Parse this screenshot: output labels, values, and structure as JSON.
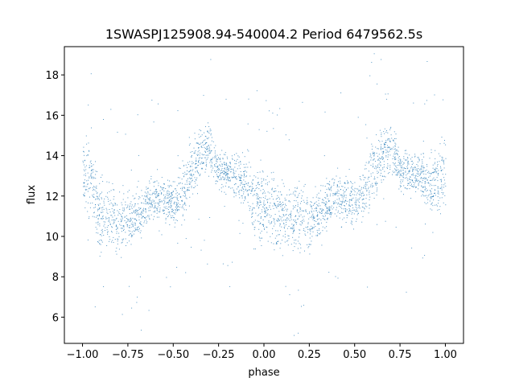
{
  "chart_data": {
    "type": "scatter",
    "title": "1SWASPJ125908.94-540004.2 Period 6479562.5s",
    "xlabel": "phase",
    "ylabel": "flux",
    "xlim": [
      -1.1,
      1.1
    ],
    "ylim": [
      4.7,
      19.4
    ],
    "xticks": [
      -1.0,
      -0.75,
      -0.5,
      -0.25,
      0.0,
      0.25,
      0.5,
      0.75,
      1.0
    ],
    "xtick_labels": [
      "−1.00",
      "−0.75",
      "−0.50",
      "−0.25",
      "0.00",
      "0.25",
      "0.50",
      "0.75",
      "1.00"
    ],
    "yticks": [
      6,
      8,
      10,
      12,
      14,
      16,
      18
    ],
    "ytick_labels": [
      "6",
      "8",
      "10",
      "12",
      "14",
      "16",
      "18"
    ],
    "grid": false,
    "point_color": "#1f77b4",
    "series": [
      {
        "x": [
          -1.0,
          -0.95,
          -0.9,
          -0.85,
          -0.8,
          -0.75,
          -0.7,
          -0.65,
          -0.6,
          -0.55,
          -0.5,
          -0.45,
          -0.4,
          -0.35,
          -0.3,
          -0.25,
          -0.2,
          -0.15,
          -0.1,
          -0.05,
          0.0,
          0.05,
          0.1,
          0.15,
          0.2,
          0.25,
          0.3,
          0.35,
          0.4,
          0.45,
          0.5,
          0.55,
          0.6,
          0.65,
          0.7,
          0.75,
          0.8,
          0.85,
          0.9,
          0.95,
          1.0
        ],
        "y": [
          13.2,
          12.6,
          11.0,
          11.2,
          10.8,
          10.6,
          11.2,
          11.5,
          11.9,
          11.8,
          11.7,
          12.2,
          13.1,
          14.1,
          14.4,
          13.3,
          13.2,
          13.0,
          12.7,
          11.6,
          11.4,
          11.3,
          11.1,
          11.0,
          10.9,
          10.7,
          11.2,
          11.6,
          12.0,
          11.8,
          11.7,
          12.2,
          13.1,
          14.1,
          14.4,
          13.3,
          13.2,
          13.0,
          12.7,
          12.6,
          13.2
        ],
        "spread": [
          1.4,
          1.6,
          1.7,
          1.4,
          1.3,
          1.2,
          1.1,
          1.0,
          1.0,
          0.9,
          0.9,
          1.1,
          1.3,
          1.1,
          1.0,
          0.8,
          0.8,
          0.9,
          1.1,
          1.5,
          1.6,
          1.5,
          1.5,
          1.4,
          1.3,
          1.2,
          1.1,
          1.0,
          1.0,
          0.9,
          0.9,
          1.1,
          1.3,
          1.1,
          1.0,
          0.8,
          0.8,
          0.9,
          1.1,
          1.4,
          1.4
        ]
      }
    ]
  }
}
